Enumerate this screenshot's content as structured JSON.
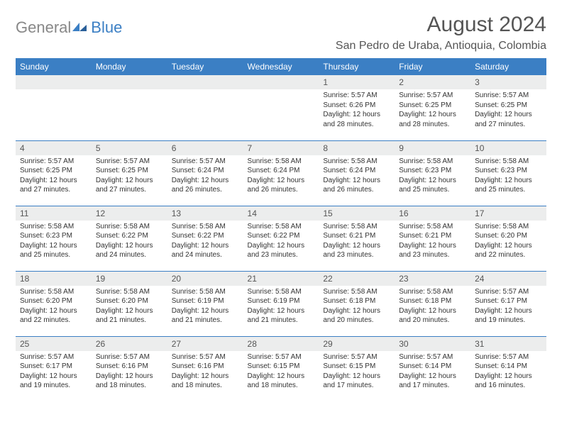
{
  "logo": {
    "text_gray": "General",
    "text_blue": "Blue"
  },
  "title": "August 2024",
  "location": "San Pedro de Uraba, Antioquia, Colombia",
  "colors": {
    "header_bg": "#3b7fc4",
    "header_text": "#ffffff",
    "daynum_bg": "#eceded",
    "text": "#333333",
    "title_color": "#555555",
    "row_border": "#3b7fc4"
  },
  "fonts": {
    "title_size_pt": 22,
    "location_size_pt": 12,
    "dayheader_size_pt": 9,
    "body_size_pt": 7.5
  },
  "day_headers": [
    "Sunday",
    "Monday",
    "Tuesday",
    "Wednesday",
    "Thursday",
    "Friday",
    "Saturday"
  ],
  "weeks": [
    [
      {
        "day": null
      },
      {
        "day": null
      },
      {
        "day": null
      },
      {
        "day": null
      },
      {
        "day": "1",
        "sunrise": "5:57 AM",
        "sunset": "6:26 PM",
        "daylight": "12 hours and 28 minutes."
      },
      {
        "day": "2",
        "sunrise": "5:57 AM",
        "sunset": "6:25 PM",
        "daylight": "12 hours and 28 minutes."
      },
      {
        "day": "3",
        "sunrise": "5:57 AM",
        "sunset": "6:25 PM",
        "daylight": "12 hours and 27 minutes."
      }
    ],
    [
      {
        "day": "4",
        "sunrise": "5:57 AM",
        "sunset": "6:25 PM",
        "daylight": "12 hours and 27 minutes."
      },
      {
        "day": "5",
        "sunrise": "5:57 AM",
        "sunset": "6:25 PM",
        "daylight": "12 hours and 27 minutes."
      },
      {
        "day": "6",
        "sunrise": "5:57 AM",
        "sunset": "6:24 PM",
        "daylight": "12 hours and 26 minutes."
      },
      {
        "day": "7",
        "sunrise": "5:58 AM",
        "sunset": "6:24 PM",
        "daylight": "12 hours and 26 minutes."
      },
      {
        "day": "8",
        "sunrise": "5:58 AM",
        "sunset": "6:24 PM",
        "daylight": "12 hours and 26 minutes."
      },
      {
        "day": "9",
        "sunrise": "5:58 AM",
        "sunset": "6:23 PM",
        "daylight": "12 hours and 25 minutes."
      },
      {
        "day": "10",
        "sunrise": "5:58 AM",
        "sunset": "6:23 PM",
        "daylight": "12 hours and 25 minutes."
      }
    ],
    [
      {
        "day": "11",
        "sunrise": "5:58 AM",
        "sunset": "6:23 PM",
        "daylight": "12 hours and 25 minutes."
      },
      {
        "day": "12",
        "sunrise": "5:58 AM",
        "sunset": "6:22 PM",
        "daylight": "12 hours and 24 minutes."
      },
      {
        "day": "13",
        "sunrise": "5:58 AM",
        "sunset": "6:22 PM",
        "daylight": "12 hours and 24 minutes."
      },
      {
        "day": "14",
        "sunrise": "5:58 AM",
        "sunset": "6:22 PM",
        "daylight": "12 hours and 23 minutes."
      },
      {
        "day": "15",
        "sunrise": "5:58 AM",
        "sunset": "6:21 PM",
        "daylight": "12 hours and 23 minutes."
      },
      {
        "day": "16",
        "sunrise": "5:58 AM",
        "sunset": "6:21 PM",
        "daylight": "12 hours and 23 minutes."
      },
      {
        "day": "17",
        "sunrise": "5:58 AM",
        "sunset": "6:20 PM",
        "daylight": "12 hours and 22 minutes."
      }
    ],
    [
      {
        "day": "18",
        "sunrise": "5:58 AM",
        "sunset": "6:20 PM",
        "daylight": "12 hours and 22 minutes."
      },
      {
        "day": "19",
        "sunrise": "5:58 AM",
        "sunset": "6:20 PM",
        "daylight": "12 hours and 21 minutes."
      },
      {
        "day": "20",
        "sunrise": "5:58 AM",
        "sunset": "6:19 PM",
        "daylight": "12 hours and 21 minutes."
      },
      {
        "day": "21",
        "sunrise": "5:58 AM",
        "sunset": "6:19 PM",
        "daylight": "12 hours and 21 minutes."
      },
      {
        "day": "22",
        "sunrise": "5:58 AM",
        "sunset": "6:18 PM",
        "daylight": "12 hours and 20 minutes."
      },
      {
        "day": "23",
        "sunrise": "5:58 AM",
        "sunset": "6:18 PM",
        "daylight": "12 hours and 20 minutes."
      },
      {
        "day": "24",
        "sunrise": "5:57 AM",
        "sunset": "6:17 PM",
        "daylight": "12 hours and 19 minutes."
      }
    ],
    [
      {
        "day": "25",
        "sunrise": "5:57 AM",
        "sunset": "6:17 PM",
        "daylight": "12 hours and 19 minutes."
      },
      {
        "day": "26",
        "sunrise": "5:57 AM",
        "sunset": "6:16 PM",
        "daylight": "12 hours and 18 minutes."
      },
      {
        "day": "27",
        "sunrise": "5:57 AM",
        "sunset": "6:16 PM",
        "daylight": "12 hours and 18 minutes."
      },
      {
        "day": "28",
        "sunrise": "5:57 AM",
        "sunset": "6:15 PM",
        "daylight": "12 hours and 18 minutes."
      },
      {
        "day": "29",
        "sunrise": "5:57 AM",
        "sunset": "6:15 PM",
        "daylight": "12 hours and 17 minutes."
      },
      {
        "day": "30",
        "sunrise": "5:57 AM",
        "sunset": "6:14 PM",
        "daylight": "12 hours and 17 minutes."
      },
      {
        "day": "31",
        "sunrise": "5:57 AM",
        "sunset": "6:14 PM",
        "daylight": "12 hours and 16 minutes."
      }
    ]
  ],
  "labels": {
    "sunrise": "Sunrise:",
    "sunset": "Sunset:",
    "daylight": "Daylight:"
  }
}
